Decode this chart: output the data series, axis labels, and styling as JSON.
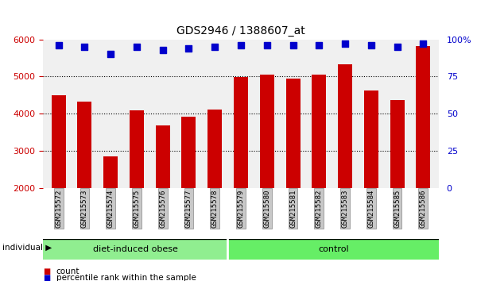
{
  "title": "GDS2946 / 1388607_at",
  "categories": [
    "GSM215572",
    "GSM215573",
    "GSM215574",
    "GSM215575",
    "GSM215576",
    "GSM215577",
    "GSM215578",
    "GSM215579",
    "GSM215580",
    "GSM215581",
    "GSM215582",
    "GSM215583",
    "GSM215584",
    "GSM215585",
    "GSM215586"
  ],
  "bar_values": [
    4500,
    4330,
    2850,
    4100,
    3680,
    3930,
    4120,
    4980,
    5060,
    4950,
    5060,
    5340,
    4620,
    4380,
    5820
  ],
  "percentile_values": [
    96,
    95,
    90,
    95,
    93,
    94,
    95,
    96,
    96,
    96,
    96,
    97,
    96,
    95,
    97
  ],
  "bar_color": "#cc0000",
  "dot_color": "#0000cc",
  "ylim_left": [
    2000,
    6000
  ],
  "ylim_right": [
    0,
    100
  ],
  "yticks_left": [
    2000,
    3000,
    4000,
    5000,
    6000
  ],
  "yticks_right": [
    0,
    25,
    50,
    75,
    100
  ],
  "groups": [
    {
      "label": "diet-induced obese",
      "count": 7,
      "color": "#90ee90"
    },
    {
      "label": "control",
      "count": 8,
      "color": "#66ee66"
    }
  ],
  "tick_bg_color": "#c8c8c8",
  "individual_label": "individual",
  "legend_count_label": "count",
  "legend_pct_label": "percentile rank within the sample",
  "background_color": "#ffffff",
  "plot_bg_color": "#f0f0f0",
  "left_axis_color": "#cc0000",
  "right_axis_color": "#0000cc"
}
